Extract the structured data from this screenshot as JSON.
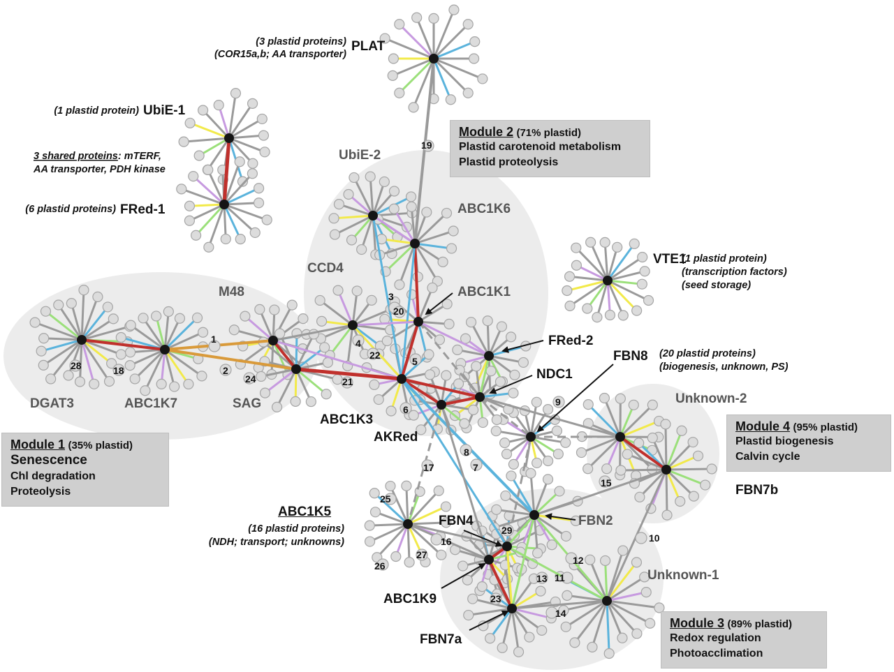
{
  "hubs": [
    {
      "id": "PLAT",
      "label": "PLAT"
    },
    {
      "id": "UbiE-1",
      "label": "UbiE-1"
    },
    {
      "id": "FRed-1",
      "label": "FRed-1"
    },
    {
      "id": "UbiE-2",
      "label": "UbiE-2"
    },
    {
      "id": "ABC1K6",
      "label": "ABC1K6"
    },
    {
      "id": "VTE1",
      "label": "VTE1"
    },
    {
      "id": "CCD4",
      "label": "CCD4"
    },
    {
      "id": "ABC1K1",
      "label": "ABC1K1"
    },
    {
      "id": "M48",
      "label": "M48"
    },
    {
      "id": "FRed-2",
      "label": "FRed-2"
    },
    {
      "id": "FBN8",
      "label": "FBN8"
    },
    {
      "id": "NDC1",
      "label": "NDC1"
    },
    {
      "id": "DGAT3",
      "label": "DGAT3"
    },
    {
      "id": "ABC1K7",
      "label": "ABC1K7"
    },
    {
      "id": "SAG",
      "label": "SAG"
    },
    {
      "id": "ABC1K3",
      "label": "ABC1K3"
    },
    {
      "id": "AKRed",
      "label": "AKRed"
    },
    {
      "id": "Unknown-2",
      "label": "Unknown-2"
    },
    {
      "id": "FBN7b",
      "label": "FBN7b"
    },
    {
      "id": "ABC1K5",
      "label": "ABC1K5"
    },
    {
      "id": "FBN4",
      "label": "FBN4"
    },
    {
      "id": "FBN2",
      "label": "FBN2"
    },
    {
      "id": "ABC1K9",
      "label": "ABC1K9"
    },
    {
      "id": "Unknown-1",
      "label": "Unknown-1"
    },
    {
      "id": "FBN7a",
      "label": "FBN7a"
    }
  ],
  "edge_numbers": [
    "1",
    "2",
    "3",
    "4",
    "5",
    "6",
    "7",
    "8",
    "9",
    "10",
    "11",
    "12",
    "13",
    "14",
    "15",
    "16",
    "17",
    "18",
    "19",
    "20",
    "21",
    "22",
    "23",
    "24",
    "25",
    "26",
    "27",
    "28",
    "29"
  ],
  "annotations": {
    "plat_note_1": "(3 plastid proteins)",
    "plat_note_2": "(COR15a,b; AA transporter)",
    "ubie1_note": "(1 plastid protein)",
    "shared_title": "3 shared proteins",
    "shared_rest": ": mTERF,",
    "shared_line2": "AA transporter, PDH kinase",
    "fred1_note": "(6 plastid proteins)",
    "vte1_note_1": "(1 plastid protein)",
    "vte1_note_2": "(transcription factors)",
    "vte1_note_3": "(seed storage)",
    "fbn8_note_1": "(20 plastid proteins)",
    "fbn8_note_2": "(biogenesis, unknown, PS)",
    "abc1k5_title": "ABC1K5",
    "abc1k5_note_1": "(16 plastid proteins)",
    "abc1k5_note_2": "(NDH; transport; unknowns)"
  },
  "modules": [
    {
      "title": "Module 1",
      "pct": "(35% plastid)",
      "lines": [
        "Senescence",
        "Chl degradation",
        "Proteolysis"
      ]
    },
    {
      "title": "Module 2",
      "pct": "(71% plastid)",
      "lines": [
        "Plastid carotenoid metabolism",
        "Plastid proteolysis"
      ]
    },
    {
      "title": "Module 3",
      "pct": "(89% plastid)",
      "lines": [
        "Redox regulation",
        "Photoacclimation"
      ]
    },
    {
      "title": "Module 4",
      "pct": "(95% plastid)",
      "lines": [
        "Plastid biogenesis",
        "Calvin cycle"
      ]
    }
  ],
  "colors": {
    "red": "#c0302c",
    "orange": "#d99a3a",
    "blue": "#5ab3dc",
    "green": "#9be07a",
    "yellow": "#f2ea4a",
    "purple": "#c79ae0",
    "grey": "#9a9a9a",
    "hub": "#151515",
    "leaf_fill": "#dcdcdc",
    "leaf_stroke": "#a5a5a5",
    "cluster": "#ececec",
    "box": "#cfcfcf"
  }
}
